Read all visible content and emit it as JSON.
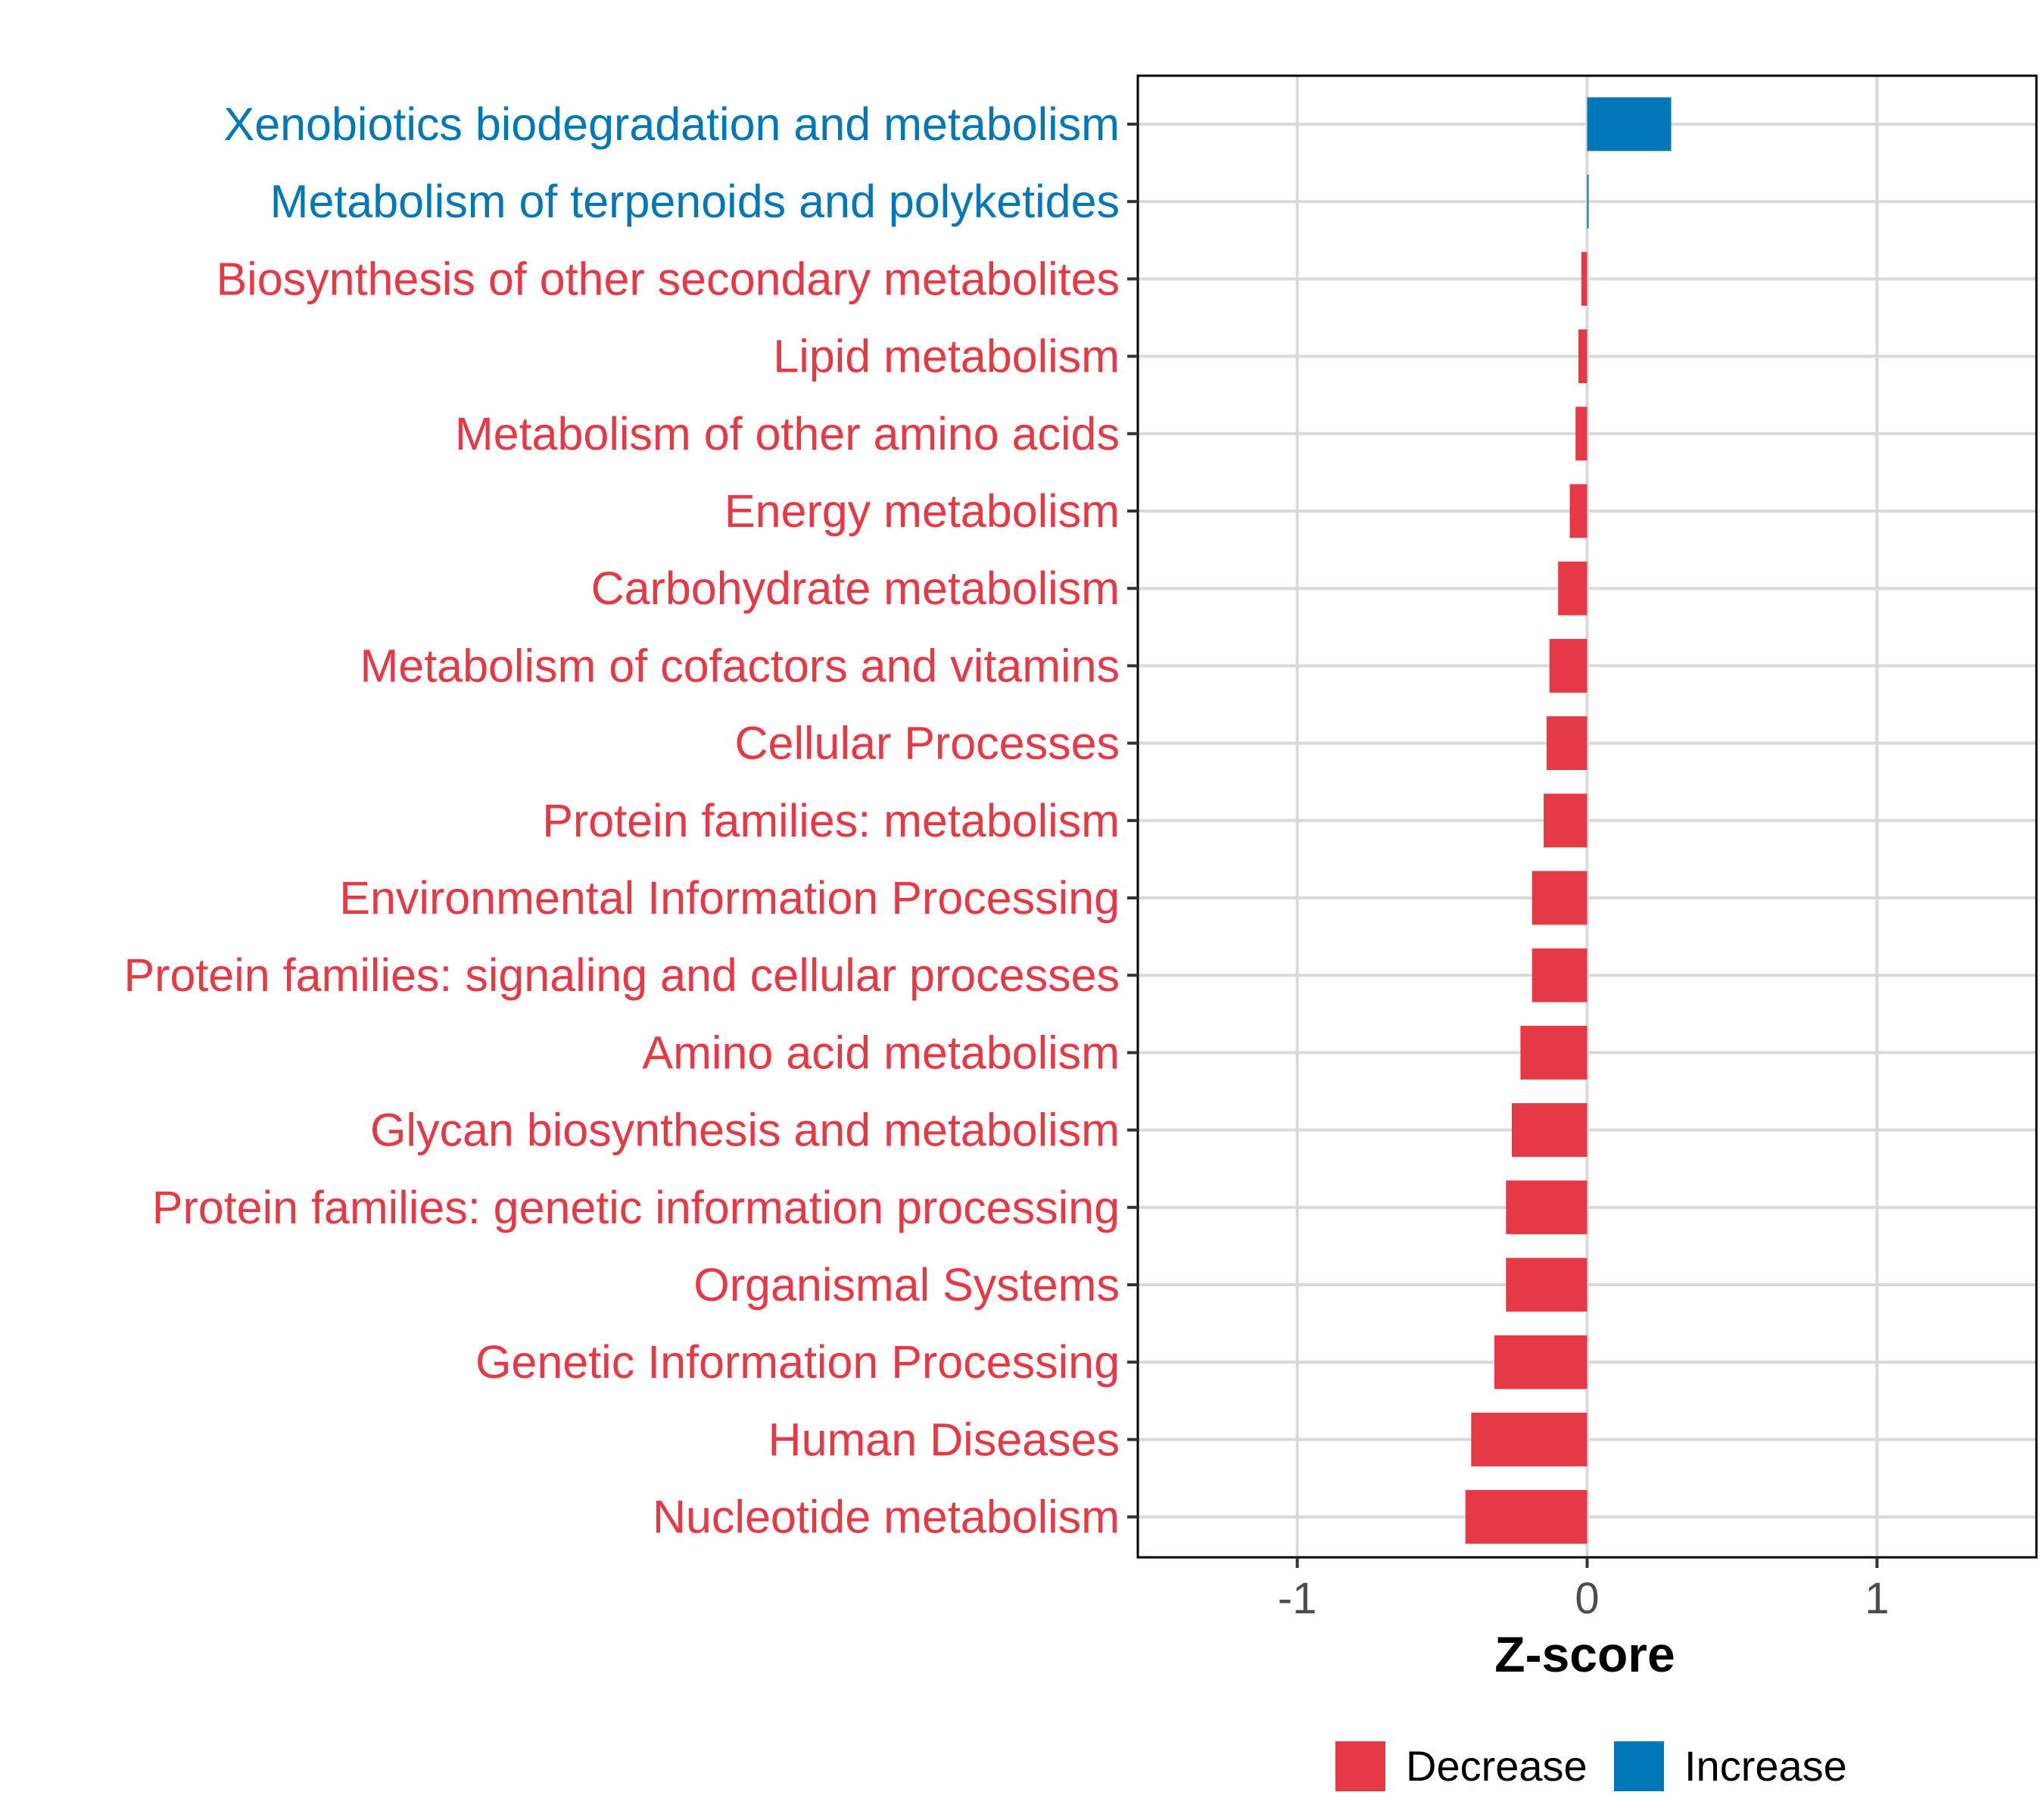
{
  "chart_data": {
    "type": "bar",
    "orientation": "horizontal",
    "title": "",
    "xlabel": "Z-score",
    "ylabel": "",
    "xlim": [
      -1.55,
      1.55
    ],
    "xticks": [
      -1,
      0,
      1
    ],
    "xtick_labels": [
      "-1",
      "0",
      "1"
    ],
    "grid": true,
    "legend_position": "bottom",
    "colors": {
      "Decrease": "#e63946",
      "Increase": "#0077b6"
    },
    "legend": [
      {
        "label": "Decrease",
        "color": "#e63946"
      },
      {
        "label": "Increase",
        "color": "#0077b6"
      }
    ],
    "categories": [
      "Xenobiotics biodegradation and metabolism",
      "Metabolism of terpenoids and polyketides",
      "Biosynthesis of other secondary metabolites",
      "Lipid metabolism",
      "Metabolism of other amino acids",
      "Energy metabolism",
      "Carbohydrate metabolism",
      "Metabolism of cofactors and vitamins",
      "Cellular Processes",
      "Protein families: metabolism",
      "Environmental Information Processing",
      "Protein families: signaling and cellular processes",
      "Amino acid metabolism",
      "Glycan biosynthesis and metabolism",
      "Protein families: genetic information processing",
      "Organismal Systems",
      "Genetic Information Processing",
      "Human Diseases",
      "Nucleotide metabolism"
    ],
    "values": [
      0.29,
      0.003,
      -0.02,
      -0.03,
      -0.04,
      -0.06,
      -0.1,
      -0.13,
      -0.14,
      -0.15,
      -0.19,
      -0.19,
      -0.23,
      -0.26,
      -0.28,
      -0.28,
      -0.32,
      -0.4,
      -0.42
    ],
    "direction": [
      "Increase",
      "Increase",
      "Decrease",
      "Decrease",
      "Decrease",
      "Decrease",
      "Decrease",
      "Decrease",
      "Decrease",
      "Decrease",
      "Decrease",
      "Decrease",
      "Decrease",
      "Decrease",
      "Decrease",
      "Decrease",
      "Decrease",
      "Decrease",
      "Decrease"
    ]
  }
}
